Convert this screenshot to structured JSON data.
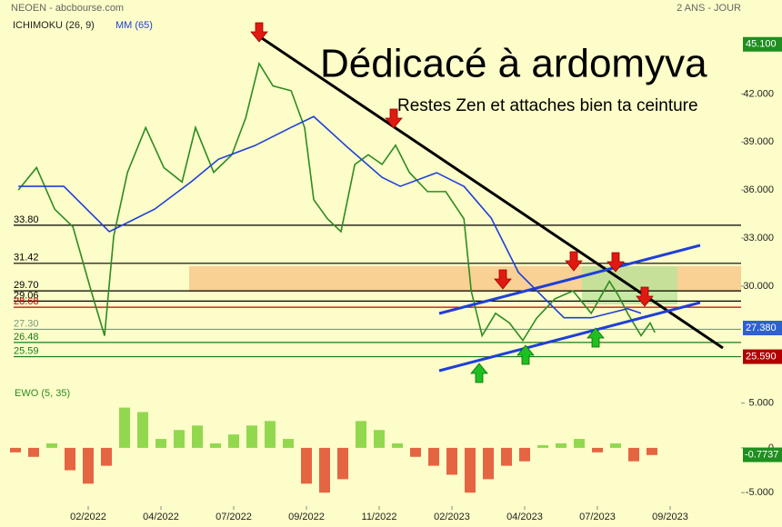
{
  "header": {
    "source": "NEOEN - abcbourse.com",
    "period": "2 ANS - JOUR",
    "ichimoku": "ICHIMOKU (26, 9)",
    "ma": "MM (65)"
  },
  "annotations": {
    "dedication": "Dédicacé à ardomyva",
    "message": "Restes Zen et attaches bien ta ceinture"
  },
  "chart_data": {
    "type": "line",
    "xlim": [
      -0.05,
      19.95
    ],
    "xticks": [
      {
        "value": 2,
        "label": "02/2022"
      },
      {
        "value": 4,
        "label": "04/2022"
      },
      {
        "value": 6,
        "label": "07/2022"
      },
      {
        "value": 8,
        "label": "09/2022"
      },
      {
        "value": 10,
        "label": "11/2022"
      },
      {
        "value": 12,
        "label": "02/2023"
      },
      {
        "value": 14,
        "label": "04/2023"
      },
      {
        "value": 16,
        "label": "07/2023"
      },
      {
        "value": 18,
        "label": "09/2023"
      }
    ],
    "ylim": [
      24.6,
      47.3
    ],
    "yticks": [
      {
        "value": 42,
        "label": "42.000"
      },
      {
        "value": 39,
        "label": "39.000"
      },
      {
        "value": 36,
        "label": "36.000"
      },
      {
        "value": 33,
        "label": "33.000"
      },
      {
        "value": 30,
        "label": "30.000"
      }
    ],
    "series": [
      {
        "name": "NEOEN",
        "color": "#2e8b22",
        "x": [
          0.08,
          0.58,
          1.08,
          1.58,
          2.08,
          2.45,
          2.7,
          3.08,
          3.58,
          4.08,
          4.58,
          4.95,
          5.45,
          5.95,
          6.33,
          6.7,
          7.08,
          7.58,
          7.95,
          8.2,
          8.58,
          8.95,
          9.33,
          9.7,
          10.08,
          10.45,
          10.83,
          11.33,
          11.83,
          12.33,
          12.53,
          12.83,
          13.2,
          13.58,
          13.95,
          14.33,
          14.83,
          15.33,
          15.83,
          16.33,
          16.58,
          16.83,
          17.2,
          17.45,
          17.58
        ],
        "values": [
          36,
          37.4,
          34.8,
          33.7,
          29.7,
          26.9,
          33.1,
          37.1,
          39.9,
          37.4,
          36.5,
          39.9,
          37.1,
          38.2,
          40.5,
          43.9,
          42.5,
          42.2,
          39.9,
          35.4,
          34.2,
          33.4,
          37.6,
          38.2,
          37.6,
          38.8,
          37.1,
          35.9,
          35.9,
          34.2,
          29.7,
          26.9,
          28.3,
          27.7,
          26.6,
          28,
          29.2,
          29.7,
          28.3,
          30.3,
          29.4,
          28.3,
          26.9,
          27.7,
          27.1
        ]
      },
      {
        "name": "MM (65)",
        "color": "#1f3fd8",
        "x": [
          0.08,
          1.33,
          2.58,
          3.83,
          4.83,
          5.58,
          6.58,
          7.58,
          8.2,
          9.08,
          10.08,
          10.58,
          11.58,
          12.33,
          13.08,
          13.83,
          14.58,
          15.08,
          15.83,
          16.83,
          17.2
        ],
        "values": [
          36.23,
          36.23,
          33.4,
          34.81,
          36.51,
          37.92,
          38.77,
          39.91,
          40.59,
          38.77,
          36.79,
          36.23,
          37.08,
          36.23,
          34.25,
          30.85,
          29.15,
          28.02,
          28.02,
          28.59,
          28.3
        ]
      }
    ],
    "levels": [
      {
        "value": 33.8,
        "label": "33.80",
        "color": "#000000"
      },
      {
        "value": 31.42,
        "label": "31.42",
        "color": "#000000"
      },
      {
        "value": 29.7,
        "label": "29.70",
        "color": "#000000"
      },
      {
        "value": 29.06,
        "label": "29.06",
        "color": "#000000"
      },
      {
        "value": 28.68,
        "label": "28.68",
        "color": "#cc0000"
      },
      {
        "value": 27.3,
        "label": "27.30",
        "color": "#7a9a7a"
      },
      {
        "value": 26.48,
        "label": "26.48",
        "color": "#1a7a1a"
      },
      {
        "value": 25.59,
        "label": "25.59",
        "color": "#1a7a1a"
      }
    ],
    "price_tags": [
      {
        "value": 45.1,
        "label": "45.100",
        "color": "#1f8f1f"
      },
      {
        "value": 27.38,
        "label": "27.380",
        "color": "#2f5fd0"
      },
      {
        "value": 25.59,
        "label": "25.590",
        "color": "#b00000"
      }
    ],
    "ewo": {
      "title": "EWO (5, 35)",
      "ylim": [
        -6.3,
        7.4
      ],
      "yticks": [
        {
          "value": 5,
          "label": "5.000"
        },
        0,
        {
          "value": -5,
          "label": "-5.000"
        }
      ],
      "x": [
        0,
        0.5,
        1,
        1.5,
        2,
        2.5,
        3,
        3.5,
        4,
        4.5,
        5,
        5.5,
        6,
        6.5,
        7,
        7.5,
        8,
        8.5,
        9,
        9.5,
        10,
        10.5,
        11,
        11.5,
        12,
        12.5,
        13,
        13.5,
        14,
        14.5,
        15,
        15.5,
        16,
        16.5,
        17,
        17.5
      ],
      "values": [
        -0.5,
        -1,
        0.5,
        -2.5,
        -4,
        -2,
        4.5,
        4,
        1,
        2,
        2.5,
        0.5,
        1.5,
        2.5,
        3,
        1,
        -4,
        -5,
        -3.5,
        3,
        2,
        0.5,
        -1,
        -2,
        -3,
        -5,
        -3.5,
        -2,
        -1.5,
        0.3,
        0.5,
        1,
        -0.5,
        0.5,
        -1.5,
        -0.8
      ],
      "positive_color": "#7fd13a",
      "negative_color": "#e04a2a",
      "tag": {
        "value": -0.7737,
        "label": "-0.7737",
        "color": "#1f8f1f"
      }
    }
  }
}
